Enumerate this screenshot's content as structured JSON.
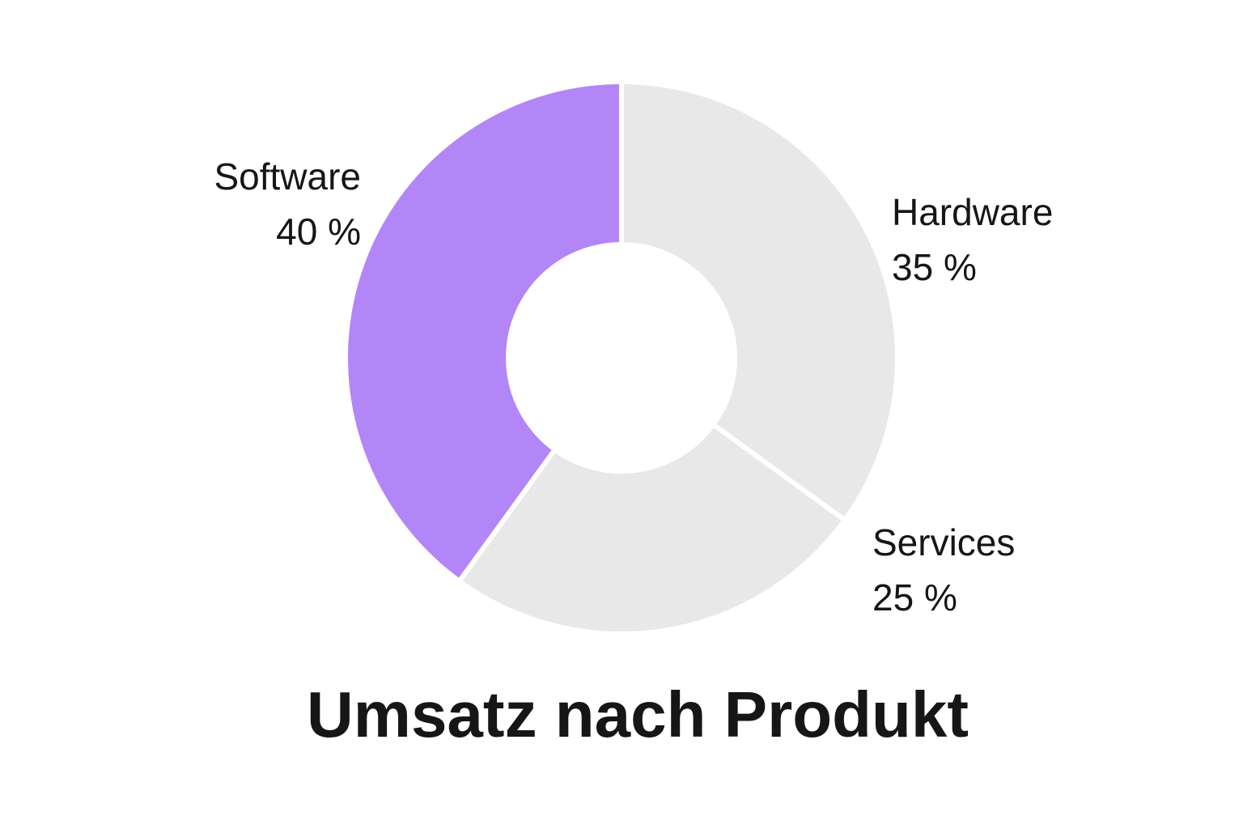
{
  "chart_data": {
    "type": "pie",
    "variant": "donut",
    "title": "Umsatz nach Produkt",
    "slices": [
      {
        "label": "Hardware",
        "value": 35,
        "value_label": "35 %",
        "color": "#e8e8e8"
      },
      {
        "label": "Services",
        "value": 25,
        "value_label": "25 %",
        "color": "#e8e8e8"
      },
      {
        "label": "Software",
        "value": 40,
        "value_label": "40 %",
        "color": "#b386f7"
      }
    ],
    "unit": "%",
    "legend": "none",
    "separator_color": "#ffffff"
  }
}
